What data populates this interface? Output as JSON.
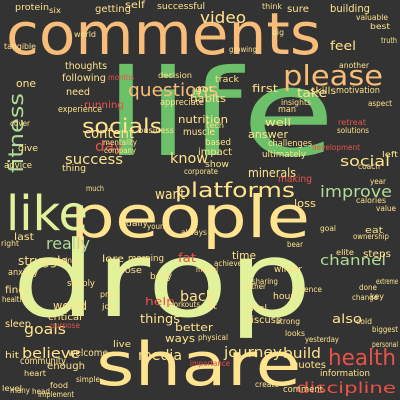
{
  "colors": {
    "background": "#333333",
    "yellow": "#ffe38e",
    "peach": "#f8bd79",
    "green": "#6cc069",
    "lime": "#e1f29a",
    "red": "#e8524a",
    "orange": "#e88b4f",
    "mint": "#b1db97"
  },
  "words": [
    {
      "text": "life",
      "color": "green"
    },
    {
      "text": "drop",
      "color": "lime"
    },
    {
      "text": "people",
      "color": "yellow"
    },
    {
      "text": "comments",
      "color": "peach"
    },
    {
      "text": "share",
      "color": "yellow"
    },
    {
      "text": "like",
      "color": "lime"
    },
    {
      "text": "please",
      "color": "peach"
    },
    {
      "text": "platforms",
      "color": "yellow"
    },
    {
      "text": "socials",
      "color": "yellow"
    },
    {
      "text": "questions",
      "color": "peach"
    },
    {
      "text": "fitness",
      "color": "mint"
    },
    {
      "text": "health",
      "color": "red"
    },
    {
      "text": "improve",
      "color": "mint"
    },
    {
      "text": "really",
      "color": "mint"
    },
    {
      "text": "want",
      "color": "yellow"
    },
    {
      "text": "discipline",
      "color": "red"
    },
    {
      "text": "video",
      "color": "yellow"
    },
    {
      "text": "channel",
      "color": "mint"
    },
    {
      "text": "know",
      "color": "yellow"
    },
    {
      "text": "success",
      "color": "yellow"
    },
    {
      "text": "social",
      "color": "yellow"
    },
    {
      "text": "day",
      "color": "red"
    },
    {
      "text": "content",
      "color": "yellow"
    },
    {
      "text": "media",
      "color": "yellow"
    },
    {
      "text": "goals",
      "color": "yellow"
    },
    {
      "text": "believe",
      "color": "yellow"
    },
    {
      "text": "journey",
      "color": "yellow"
    },
    {
      "text": "build",
      "color": "yellow"
    },
    {
      "text": "back",
      "color": "yellow"
    },
    {
      "text": "would",
      "color": "yellow"
    },
    {
      "text": "struggle",
      "color": "yellow"
    },
    {
      "text": "minerals",
      "color": "yellow"
    },
    {
      "text": "nutrition",
      "color": "yellow"
    },
    {
      "text": "running",
      "color": "red"
    },
    {
      "text": "habits",
      "color": "yellow"
    },
    {
      "text": "answer",
      "color": "yellow"
    },
    {
      "text": "well",
      "color": "yellow"
    },
    {
      "text": "take",
      "color": "yellow"
    },
    {
      "text": "feel",
      "color": "yellow"
    },
    {
      "text": "also",
      "color": "yellow"
    },
    {
      "text": "things",
      "color": "yellow"
    },
    {
      "text": "better",
      "color": "yellow"
    },
    {
      "text": "ways",
      "color": "yellow"
    },
    {
      "text": "help",
      "color": "red"
    },
    {
      "text": "welcome",
      "color": "yellow"
    },
    {
      "text": "community",
      "color": "yellow"
    },
    {
      "text": "one",
      "color": "yellow"
    },
    {
      "text": "need",
      "color": "yellow"
    },
    {
      "text": "thoughts",
      "color": "yellow"
    },
    {
      "text": "following",
      "color": "yellow"
    },
    {
      "text": "getting",
      "color": "yellow"
    },
    {
      "text": "building",
      "color": "yellow"
    },
    {
      "text": "sure",
      "color": "yellow"
    },
    {
      "text": "successful",
      "color": "yellow"
    },
    {
      "text": "self",
      "color": "yellow"
    },
    {
      "text": "protein",
      "color": "yellow"
    },
    {
      "text": "first",
      "color": "yellow"
    },
    {
      "text": "time",
      "color": "yellow"
    },
    {
      "text": "quotes",
      "color": "yellow"
    },
    {
      "text": "information",
      "color": "yellow"
    },
    {
      "text": "comment",
      "color": "yellow"
    },
    {
      "text": "enough",
      "color": "yellow"
    },
    {
      "text": "last",
      "color": "yellow"
    },
    {
      "text": "making",
      "color": "red"
    },
    {
      "text": "loss",
      "color": "yellow"
    },
    {
      "text": "impact",
      "color": "yellow"
    },
    {
      "text": "based",
      "color": "yellow"
    },
    {
      "text": "show",
      "color": "yellow"
    },
    {
      "text": "muscle",
      "color": "yellow"
    },
    {
      "text": "got",
      "color": "yellow"
    },
    {
      "text": "appreciate",
      "color": "yellow"
    },
    {
      "text": "experience",
      "color": "yellow"
    },
    {
      "text": "skills",
      "color": "yellow"
    },
    {
      "text": "motivation",
      "color": "yellow"
    },
    {
      "text": "dive",
      "color": "yellow"
    },
    {
      "text": "advice",
      "color": "yellow"
    },
    {
      "text": "ultimately",
      "color": "yellow"
    },
    {
      "text": "lose",
      "color": "yellow"
    },
    {
      "text": "lore",
      "color": "yellow"
    },
    {
      "text": "morning",
      "color": "yellow"
    },
    {
      "text": "sleep",
      "color": "yellow"
    },
    {
      "text": "eat",
      "color": "yellow"
    },
    {
      "text": "steps",
      "color": "yellow"
    },
    {
      "text": "fat",
      "color": "red"
    },
    {
      "text": "find",
      "color": "yellow"
    },
    {
      "text": "simply",
      "color": "yellow"
    },
    {
      "text": "critical",
      "color": "yellow"
    },
    {
      "text": "hit",
      "color": "yellow"
    },
    {
      "text": "meal",
      "color": "yellow"
    },
    {
      "text": "discuss",
      "color": "yellow"
    },
    {
      "text": "winter",
      "color": "yellow"
    },
    {
      "text": "hours",
      "color": "yellow"
    },
    {
      "text": "body",
      "color": "yellow"
    },
    {
      "text": "anxiety",
      "color": "yellow"
    },
    {
      "text": "daily",
      "color": "yellow"
    },
    {
      "text": "challenges",
      "color": "yellow"
    },
    {
      "text": "business",
      "color": "yellow"
    },
    {
      "text": "decision",
      "color": "yellow"
    },
    {
      "text": "track",
      "color": "yellow"
    },
    {
      "text": "man",
      "color": "yellow"
    },
    {
      "text": "development",
      "color": "red"
    },
    {
      "text": "insights",
      "color": "yellow"
    },
    {
      "text": "another",
      "color": "yellow"
    },
    {
      "text": "aspect",
      "color": "yellow"
    },
    {
      "text": "retreat",
      "color": "red"
    },
    {
      "text": "solutions",
      "color": "yellow"
    },
    {
      "text": "best",
      "color": "yellow"
    },
    {
      "text": "truth",
      "color": "yellow"
    },
    {
      "text": "growing",
      "color": "yellow"
    },
    {
      "text": "valuable",
      "color": "yellow"
    },
    {
      "text": "extreme",
      "color": "yellow"
    },
    {
      "text": "personal",
      "color": "yellow"
    },
    {
      "text": "purpose",
      "color": "red"
    },
    {
      "text": "yesterday",
      "color": "yellow"
    },
    {
      "text": "create",
      "color": "yellow"
    },
    {
      "text": "looks",
      "color": "yellow"
    },
    {
      "text": "live",
      "color": "yellow"
    },
    {
      "text": "young",
      "color": "yellow"
    },
    {
      "text": "simple",
      "color": "yellow"
    },
    {
      "text": "heart",
      "color": "yellow"
    },
    {
      "text": "level",
      "color": "yellow"
    },
    {
      "text": "biggest",
      "color": "yellow"
    },
    {
      "text": "physical",
      "color": "yellow"
    },
    {
      "text": "importance",
      "color": "red"
    },
    {
      "text": "workouts",
      "color": "yellow"
    },
    {
      "text": "always",
      "color": "yellow"
    },
    {
      "text": "achieve",
      "color": "yellow"
    },
    {
      "text": "mental",
      "color": "yellow"
    },
    {
      "text": "corporate",
      "color": "yellow"
    },
    {
      "text": "tech",
      "color": "yellow"
    },
    {
      "text": "mentality",
      "color": "yellow"
    },
    {
      "text": "company",
      "color": "yellow"
    },
    {
      "text": "thing",
      "color": "yellow"
    },
    {
      "text": "cover",
      "color": "yellow"
    },
    {
      "text": "much",
      "color": "yellow"
    },
    {
      "text": "engineer",
      "color": "yellow"
    },
    {
      "text": "right",
      "color": "yellow"
    },
    {
      "text": "bear",
      "color": "yellow"
    },
    {
      "text": "elite",
      "color": "yellow"
    },
    {
      "text": "ownership",
      "color": "yellow"
    },
    {
      "text": "calories",
      "color": "yellow"
    },
    {
      "text": "coach",
      "color": "yellow"
    },
    {
      "text": "six",
      "color": "yellow"
    },
    {
      "text": "tangible",
      "color": "yellow"
    },
    {
      "text": "world",
      "color": "yellow"
    },
    {
      "text": "think",
      "color": "yellow"
    },
    {
      "text": "value",
      "color": "yellow"
    },
    {
      "text": "goal",
      "color": "yellow"
    },
    {
      "text": "change",
      "color": "yellow"
    },
    {
      "text": "silence",
      "color": "yellow"
    },
    {
      "text": "cold",
      "color": "yellow"
    },
    {
      "text": "done",
      "color": "yellow"
    },
    {
      "text": "prep",
      "color": "yellow"
    },
    {
      "text": "job",
      "color": "yellow"
    },
    {
      "text": "left",
      "color": "yellow"
    },
    {
      "text": "many",
      "color": "yellow"
    },
    {
      "text": "months",
      "color": "red"
    },
    {
      "text": "fit",
      "color": "yellow"
    },
    {
      "text": "head",
      "color": "yellow"
    },
    {
      "text": "food",
      "color": "yellow"
    },
    {
      "text": "implement",
      "color": "yellow"
    },
    {
      "text": "healthy",
      "color": "yellow"
    },
    {
      "text": "strong",
      "color": "yellow"
    },
    {
      "text": "key",
      "color": "yellow"
    },
    {
      "text": "sharing",
      "color": "yellow"
    },
    {
      "text": "rather",
      "color": "yellow"
    },
    {
      "text": "year",
      "color": "yellow"
    },
    {
      "text": "big",
      "color": "yellow"
    }
  ]
}
